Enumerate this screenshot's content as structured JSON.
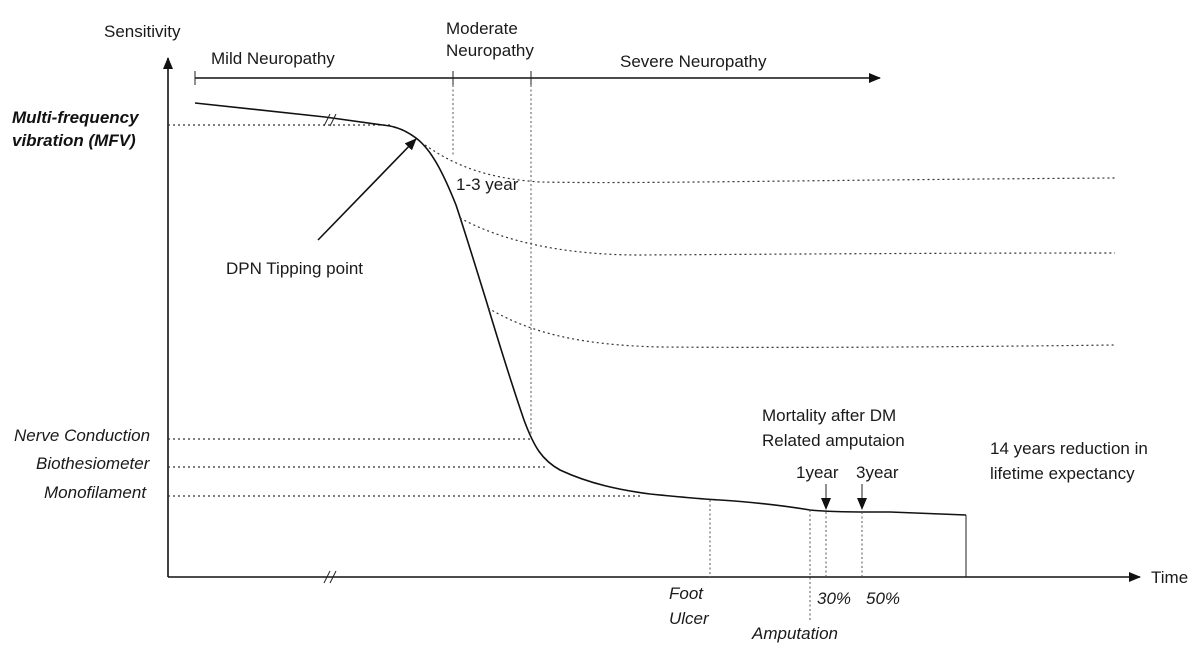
{
  "axes": {
    "y_label": "Sensitivity",
    "x_label": "Time"
  },
  "stages": {
    "mild": "Mild Neuropathy",
    "moderate_line1": "Moderate",
    "moderate_line2": "Neuropathy",
    "severe": "Severe Neuropathy"
  },
  "y_markers": {
    "mfv_line1": "Multi-frequency",
    "mfv_line2": "vibration (MFV)",
    "nerve_conduction": "Nerve Conduction",
    "biothesiometer": "Biothesiometer",
    "monofilament": "Monofilament"
  },
  "annotations": {
    "tipping_point": "DPN Tipping point",
    "interval": "1-3 year",
    "mortality_line1": "Mortality after DM",
    "mortality_line2": "Related amputaion",
    "year1": "1year",
    "year3": "3year",
    "lifetime_line1": "14 years reduction in",
    "lifetime_line2": "lifetime expectancy"
  },
  "events": {
    "foot_ulcer_line1": "Foot",
    "foot_ulcer_line2": "Ulcer",
    "amputation": "Amputation",
    "pct_30": "30%",
    "pct_50": "50%"
  },
  "colors": {
    "ink": "#111111",
    "background": "#ffffff"
  }
}
